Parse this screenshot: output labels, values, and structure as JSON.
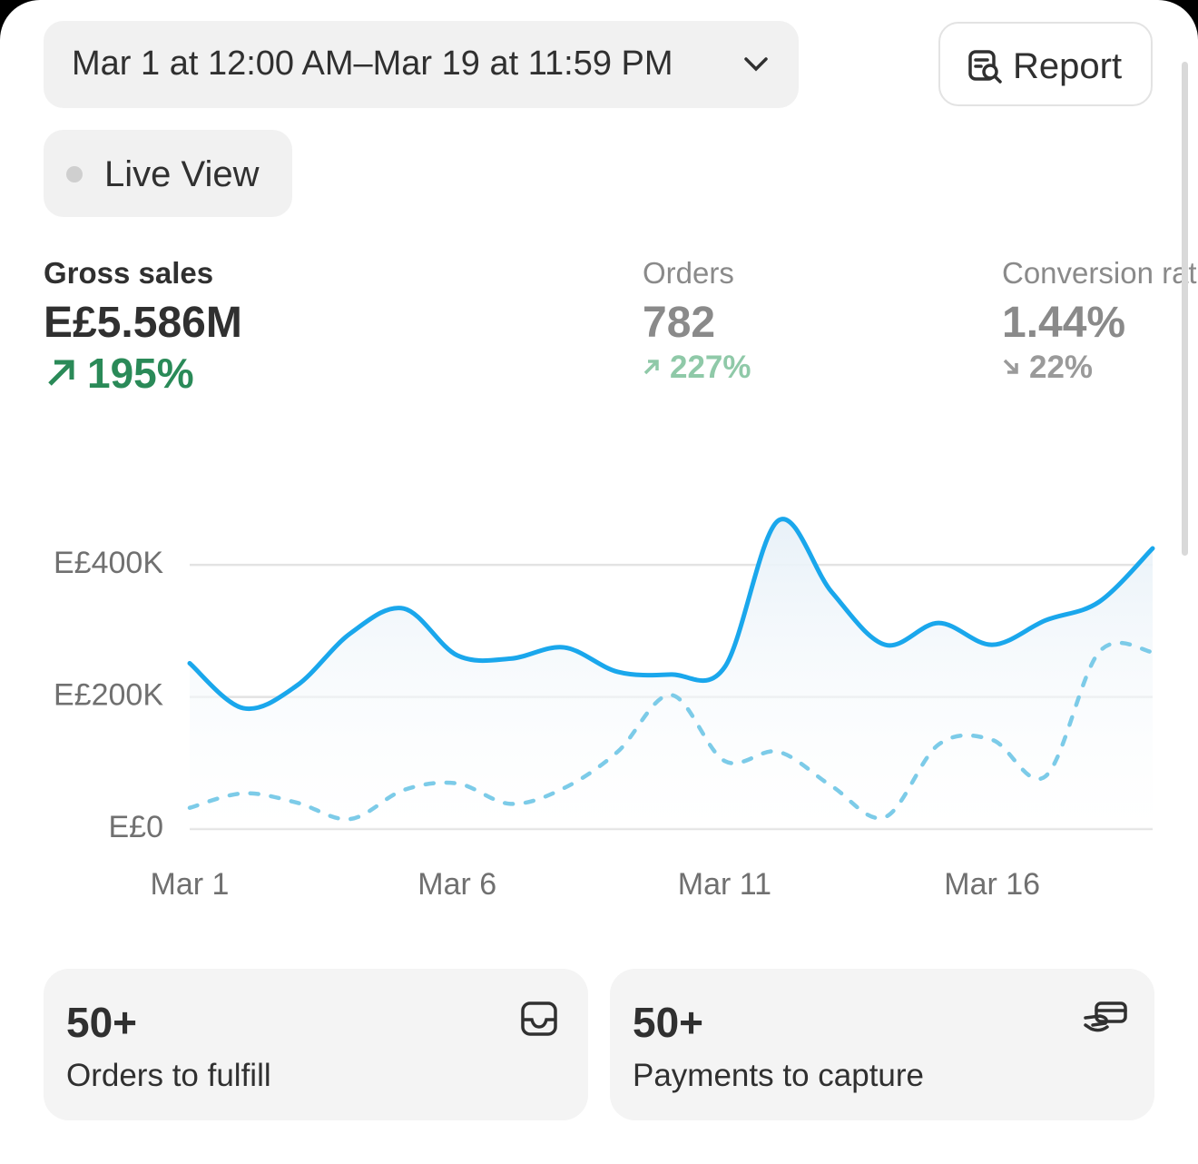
{
  "header": {
    "date_range": "Mar 1 at 12:00 AM–Mar 19 at 11:59 PM",
    "report": "Report",
    "live_view": "Live View"
  },
  "metrics": [
    {
      "label": "Gross sales",
      "value": "E£5.586M",
      "change": "195%"
    },
    {
      "label": "Orders",
      "value": "782",
      "change": "227%"
    },
    {
      "label": "Conversion rate",
      "value": "1.44%",
      "change": "22%"
    }
  ],
  "chart_data": {
    "type": "line",
    "categories": [
      "Mar 1",
      null,
      null,
      null,
      null,
      "Mar 6",
      null,
      null,
      null,
      null,
      "Mar 11",
      null,
      null,
      null,
      null,
      "Mar 16",
      null,
      null,
      null
    ],
    "series": [
      {
        "color": "#1aa7ec",
        "values": [
          251000,
          183000,
          217000,
          296000,
          334000,
          263000,
          258000,
          275000,
          238000,
          234000,
          245000,
          467000,
          359000,
          279000,
          312000,
          279000,
          316000,
          344000,
          425000
        ]
      },
      {
        "color": "#7ccbe8",
        "values": [
          32000,
          54000,
          40000,
          15000,
          59000,
          69000,
          38000,
          62000,
          117000,
          203000,
          103000,
          117000,
          65000,
          18000,
          128000,
          135000,
          80000,
          268000,
          268000
        ]
      }
    ],
    "ylim": [
      0,
      480000
    ],
    "yticks": [
      {
        "value": 0,
        "label": "E£0"
      },
      {
        "value": 200000,
        "label": "E£200K"
      },
      {
        "value": 400000,
        "label": "E£400K"
      }
    ],
    "grid": true
  },
  "cards": [
    {
      "value": "50+",
      "label": "Orders to fulfill"
    },
    {
      "value": "50+",
      "label": "Payments to capture"
    }
  ]
}
